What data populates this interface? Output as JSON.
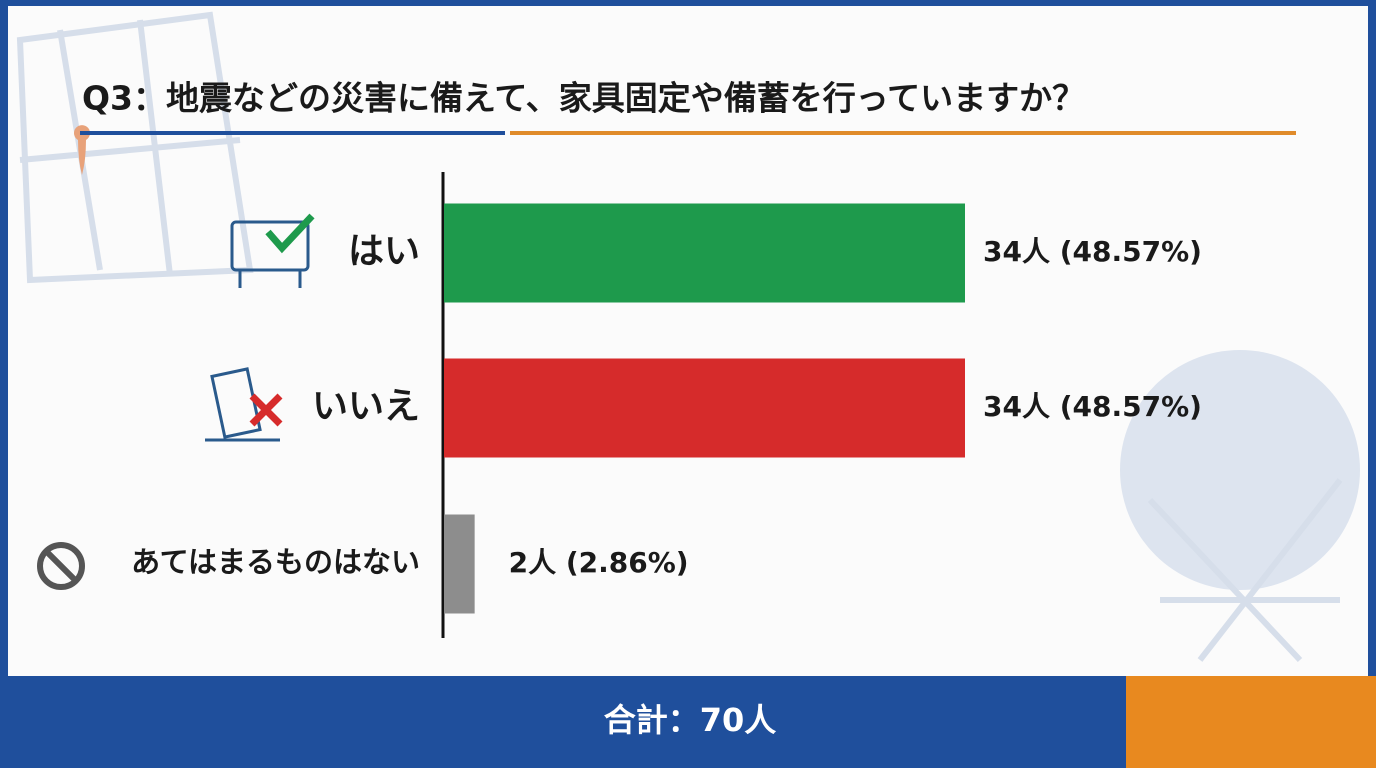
{
  "chart_data": {
    "type": "hbar",
    "title": "Q3：地震などの災害に備えて、家具固定や備蓄を行っていますか？",
    "categories": [
      "はい",
      "いいえ",
      "あてはまるものはない"
    ],
    "values": [
      34,
      34,
      2
    ],
    "value_labels": [
      "34人 (48.57%)",
      "34人 (48.57%)",
      "2人 (2.86%)"
    ],
    "colors": [
      "#1e9a4c",
      "#d62b2b",
      "#8d8d8d"
    ],
    "total": "合計：70人"
  }
}
